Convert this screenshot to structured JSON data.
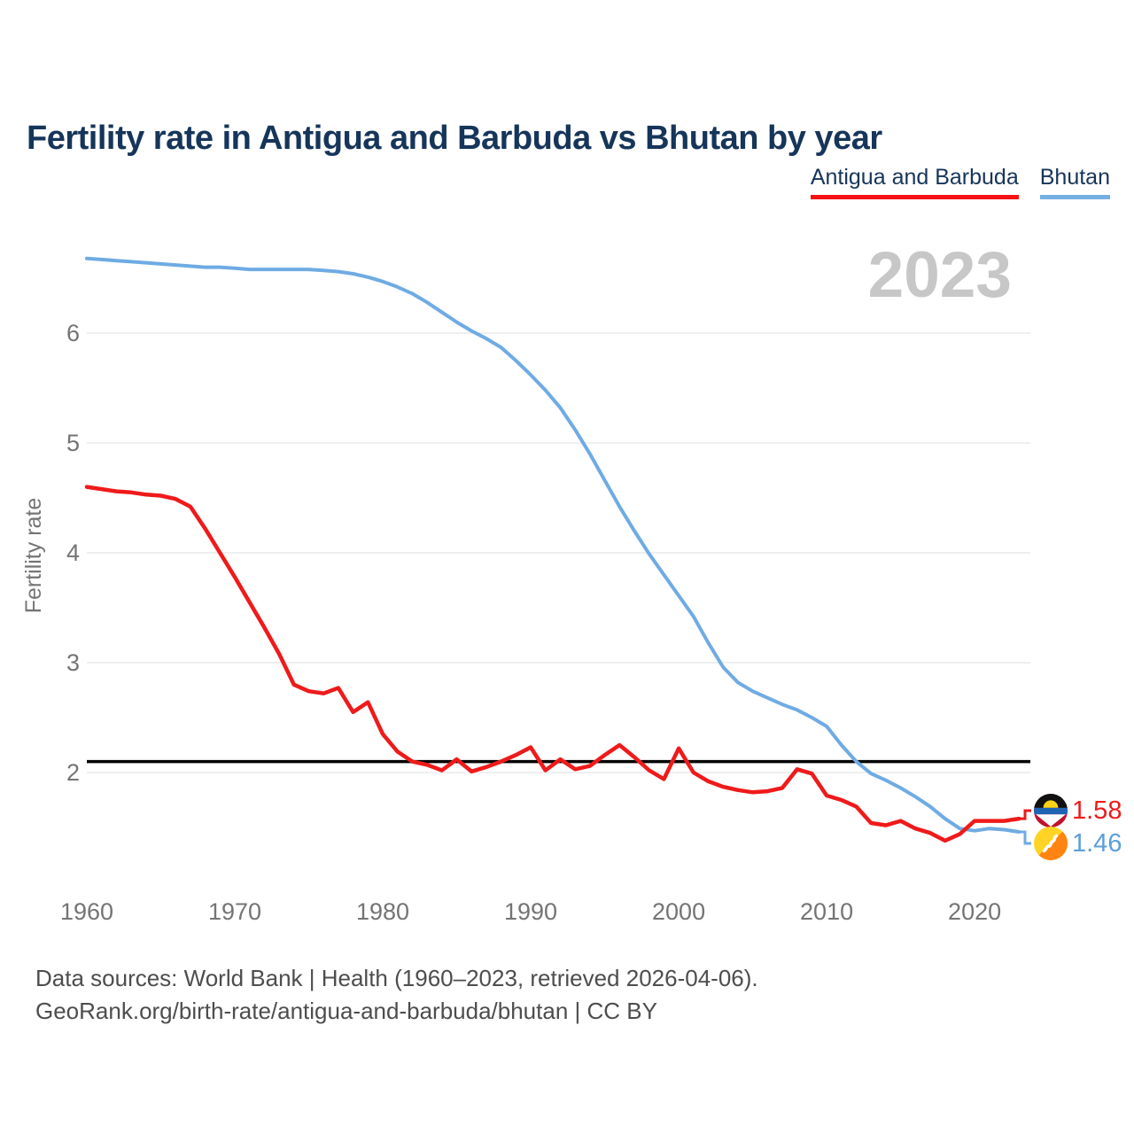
{
  "header": {
    "title": "Fertility rate in Antigua and Barbuda vs Bhutan by year"
  },
  "legend": [
    {
      "label": "Antigua and Barbuda",
      "color": "#f51111"
    },
    {
      "label": "Bhutan",
      "color": "#74b0e2"
    }
  ],
  "watermark": {
    "year": "2023"
  },
  "chart_data": {
    "type": "line",
    "title": "Fertility rate in Antigua and Barbuda vs Bhutan by year",
    "xlabel": "",
    "ylabel": "Fertility rate",
    "xlim": [
      1960,
      2023
    ],
    "ylim": [
      1.3,
      6.9
    ],
    "grid": "horizontal",
    "x_ticks": [
      1960,
      1970,
      1980,
      1990,
      2000,
      2010,
      2020
    ],
    "y_ticks": [
      6,
      5,
      4,
      3,
      2
    ],
    "reference_line": {
      "value": 2.1,
      "color": "#000000"
    },
    "x": [
      1960,
      1961,
      1962,
      1963,
      1964,
      1965,
      1966,
      1967,
      1968,
      1969,
      1970,
      1971,
      1972,
      1973,
      1974,
      1975,
      1976,
      1977,
      1978,
      1979,
      1980,
      1981,
      1982,
      1983,
      1984,
      1985,
      1986,
      1987,
      1988,
      1989,
      1990,
      1991,
      1992,
      1993,
      1994,
      1995,
      1996,
      1997,
      1998,
      1999,
      2000,
      2001,
      2002,
      2003,
      2004,
      2005,
      2006,
      2007,
      2008,
      2009,
      2010,
      2011,
      2012,
      2013,
      2014,
      2015,
      2016,
      2017,
      2018,
      2019,
      2020,
      2021,
      2022,
      2023
    ],
    "series": [
      {
        "name": "Antigua and Barbuda",
        "color": "#ef1a1a",
        "values": [
          4.6,
          4.58,
          4.56,
          4.55,
          4.53,
          4.52,
          4.49,
          4.42,
          4.22,
          4.0,
          3.78,
          3.55,
          3.32,
          3.08,
          2.8,
          2.74,
          2.72,
          2.77,
          2.55,
          2.64,
          2.35,
          2.19,
          2.1,
          2.07,
          2.02,
          2.12,
          2.01,
          2.05,
          2.1,
          2.16,
          2.23,
          2.02,
          2.12,
          2.03,
          2.06,
          2.16,
          2.25,
          2.14,
          2.02,
          1.94,
          2.22,
          2.0,
          1.92,
          1.87,
          1.84,
          1.82,
          1.83,
          1.86,
          2.03,
          1.99,
          1.79,
          1.75,
          1.69,
          1.54,
          1.52,
          1.56,
          1.49,
          1.45,
          1.38,
          1.44,
          1.56,
          1.56,
          1.56,
          1.58
        ]
      },
      {
        "name": "Bhutan",
        "color": "#6fabe4",
        "values": [
          6.68,
          6.67,
          6.66,
          6.65,
          6.64,
          6.63,
          6.62,
          6.61,
          6.6,
          6.6,
          6.59,
          6.58,
          6.58,
          6.58,
          6.58,
          6.58,
          6.57,
          6.56,
          6.54,
          6.51,
          6.47,
          6.42,
          6.36,
          6.28,
          6.19,
          6.1,
          6.02,
          5.95,
          5.87,
          5.75,
          5.62,
          5.48,
          5.32,
          5.12,
          4.9,
          4.66,
          4.42,
          4.2,
          3.99,
          3.8,
          3.61,
          3.42,
          3.18,
          2.96,
          2.82,
          2.74,
          2.68,
          2.62,
          2.57,
          2.5,
          2.42,
          2.25,
          2.1,
          1.99,
          1.93,
          1.86,
          1.78,
          1.69,
          1.58,
          1.49,
          1.47,
          1.49,
          1.48,
          1.46
        ]
      }
    ],
    "end_labels": [
      {
        "series": "Antigua and Barbuda",
        "value_label": "1.58",
        "flag": "antigua-and-barbuda-flag",
        "text_color": "#ef1a1a"
      },
      {
        "series": "Bhutan",
        "value_label": "1.46",
        "flag": "bhutan-flag",
        "text_color": "#5b9fd8"
      }
    ],
    "legend_position": "top-right"
  },
  "footer": {
    "line1": "Data sources: World Bank | Health (1960–2023, retrieved 2026-04-06).",
    "line2": "GeoRank.org/birth-rate/antigua-and-barbuda/bhutan | CC BY"
  }
}
